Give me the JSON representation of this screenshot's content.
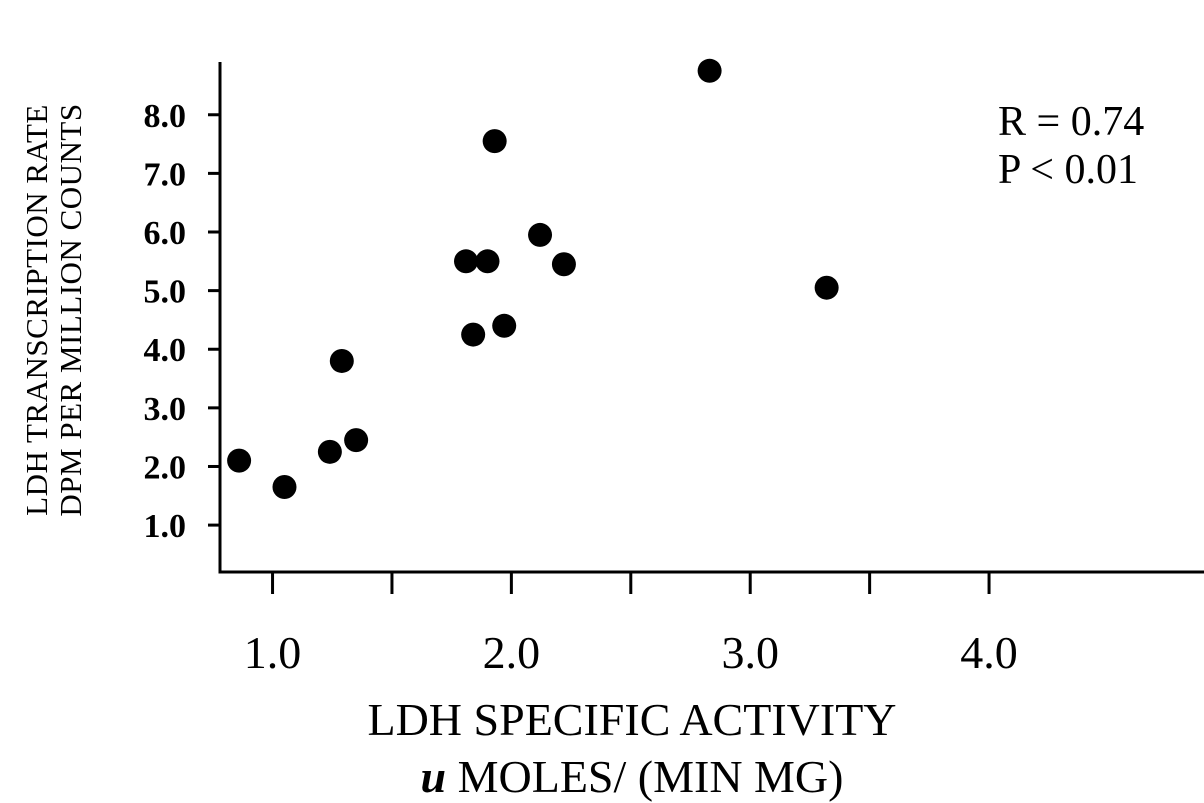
{
  "chart_data": {
    "type": "scatter",
    "title": "",
    "ylabel_lines": [
      "LDH TRANSCRIPTION RATE",
      "DPM PER MILLION COUNTS"
    ],
    "xlabel_line1": "LDH  SPECIFIC ACTIVITY",
    "xlabel_unit_prefix": "u",
    "xlabel_unit_rest": " MOLES/ (MIN MG)",
    "annotations": [
      "R = 0.74",
      "P < 0.01"
    ],
    "xlim": [
      0.78,
      4.9
    ],
    "ylim": [
      0.2,
      8.9
    ],
    "xticks": [
      1.0,
      2.0,
      3.0,
      4.0
    ],
    "xtick_labels": [
      "1.0",
      "2.0",
      "3.0",
      "4.0"
    ],
    "xminor_ticks": [
      1.5,
      2.5,
      3.5
    ],
    "yticks": [
      1.0,
      2.0,
      3.0,
      4.0,
      5.0,
      6.0,
      7.0,
      8.0
    ],
    "ytick_labels": [
      "1.0",
      "2.0",
      "3.0",
      "4.0",
      "5.0",
      "6.0",
      "7.0",
      "8.0"
    ],
    "grid": false,
    "points": [
      {
        "x": 0.86,
        "y": 2.1
      },
      {
        "x": 1.05,
        "y": 1.65
      },
      {
        "x": 1.24,
        "y": 2.25
      },
      {
        "x": 1.29,
        "y": 3.8
      },
      {
        "x": 1.35,
        "y": 2.45
      },
      {
        "x": 1.81,
        "y": 5.5
      },
      {
        "x": 1.84,
        "y": 4.25
      },
      {
        "x": 1.9,
        "y": 5.5
      },
      {
        "x": 1.93,
        "y": 7.55
      },
      {
        "x": 1.97,
        "y": 4.4
      },
      {
        "x": 2.12,
        "y": 5.95
      },
      {
        "x": 2.22,
        "y": 5.45
      },
      {
        "x": 2.83,
        "y": 8.75
      },
      {
        "x": 3.32,
        "y": 5.05
      }
    ]
  }
}
